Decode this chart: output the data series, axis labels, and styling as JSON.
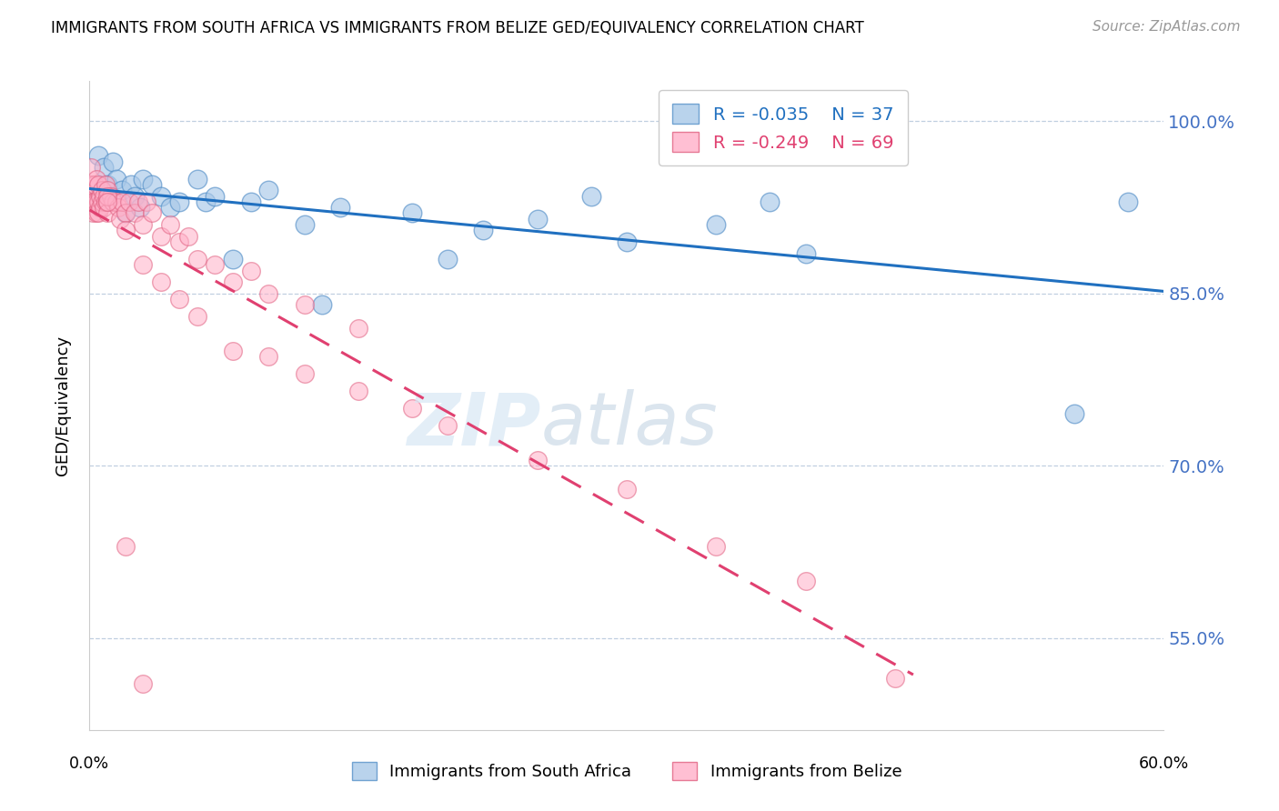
{
  "title": "IMMIGRANTS FROM SOUTH AFRICA VS IMMIGRANTS FROM BELIZE GED/EQUIVALENCY CORRELATION CHART",
  "source": "Source: ZipAtlas.com",
  "ylabel": "GED/Equivalency",
  "ytick_vals": [
    1.0,
    0.85,
    0.7,
    0.55
  ],
  "ytick_labels": [
    "100.0%",
    "85.0%",
    "70.0%",
    "55.0%"
  ],
  "xmin": 0.0,
  "xmax": 0.6,
  "ymin": 0.47,
  "ymax": 1.035,
  "legend_r1": "R = -0.035",
  "legend_n1": "N = 37",
  "legend_r2": "R = -0.249",
  "legend_n2": "N = 69",
  "legend_label1": "Immigrants from South Africa",
  "legend_label2": "Immigrants from Belize",
  "color_blue_face": "#a8c8e8",
  "color_blue_edge": "#5590c8",
  "color_pink_face": "#ffb0c8",
  "color_pink_edge": "#e06080",
  "color_line_blue": "#2070c0",
  "color_line_pink": "#e04070",
  "color_axis_label": "#4472c4",
  "south_africa_x": [
    0.001,
    0.005,
    0.008,
    0.01,
    0.012,
    0.013,
    0.015,
    0.018,
    0.02,
    0.023,
    0.025,
    0.028,
    0.03,
    0.035,
    0.04,
    0.045,
    0.05,
    0.06,
    0.065,
    0.07,
    0.08,
    0.09,
    0.1,
    0.12,
    0.13,
    0.14,
    0.18,
    0.2,
    0.22,
    0.25,
    0.28,
    0.3,
    0.35,
    0.38,
    0.4,
    0.55,
    0.58
  ],
  "south_africa_y": [
    0.93,
    0.97,
    0.96,
    0.945,
    0.935,
    0.965,
    0.95,
    0.94,
    0.92,
    0.945,
    0.935,
    0.925,
    0.95,
    0.945,
    0.935,
    0.925,
    0.93,
    0.95,
    0.93,
    0.935,
    0.88,
    0.93,
    0.94,
    0.91,
    0.84,
    0.925,
    0.92,
    0.88,
    0.905,
    0.915,
    0.935,
    0.895,
    0.91,
    0.93,
    0.885,
    0.745,
    0.93
  ],
  "belize_x": [
    0.0,
    0.001,
    0.001,
    0.001,
    0.002,
    0.002,
    0.003,
    0.003,
    0.004,
    0.004,
    0.004,
    0.005,
    0.005,
    0.005,
    0.006,
    0.006,
    0.007,
    0.007,
    0.008,
    0.008,
    0.009,
    0.009,
    0.01,
    0.01,
    0.01,
    0.012,
    0.013,
    0.015,
    0.016,
    0.017,
    0.018,
    0.02,
    0.022,
    0.025,
    0.027,
    0.03,
    0.032,
    0.035,
    0.04,
    0.045,
    0.05,
    0.055,
    0.06,
    0.07,
    0.08,
    0.09,
    0.1,
    0.01,
    0.02,
    0.03,
    0.04,
    0.05,
    0.06,
    0.08,
    0.1,
    0.12,
    0.15,
    0.18,
    0.2,
    0.25,
    0.3,
    0.35,
    0.4,
    0.45,
    0.12,
    0.15,
    0.01,
    0.02,
    0.03
  ],
  "belize_y": [
    0.93,
    0.96,
    0.945,
    0.935,
    0.92,
    0.93,
    0.945,
    0.93,
    0.93,
    0.92,
    0.95,
    0.945,
    0.93,
    0.92,
    0.935,
    0.925,
    0.93,
    0.94,
    0.935,
    0.925,
    0.93,
    0.945,
    0.93,
    0.92,
    0.94,
    0.935,
    0.93,
    0.93,
    0.925,
    0.915,
    0.93,
    0.92,
    0.93,
    0.92,
    0.93,
    0.91,
    0.93,
    0.92,
    0.9,
    0.91,
    0.895,
    0.9,
    0.88,
    0.875,
    0.86,
    0.87,
    0.85,
    0.935,
    0.905,
    0.875,
    0.86,
    0.845,
    0.83,
    0.8,
    0.795,
    0.78,
    0.765,
    0.75,
    0.735,
    0.705,
    0.68,
    0.63,
    0.6,
    0.515,
    0.84,
    0.82,
    0.93,
    0.63,
    0.51
  ]
}
